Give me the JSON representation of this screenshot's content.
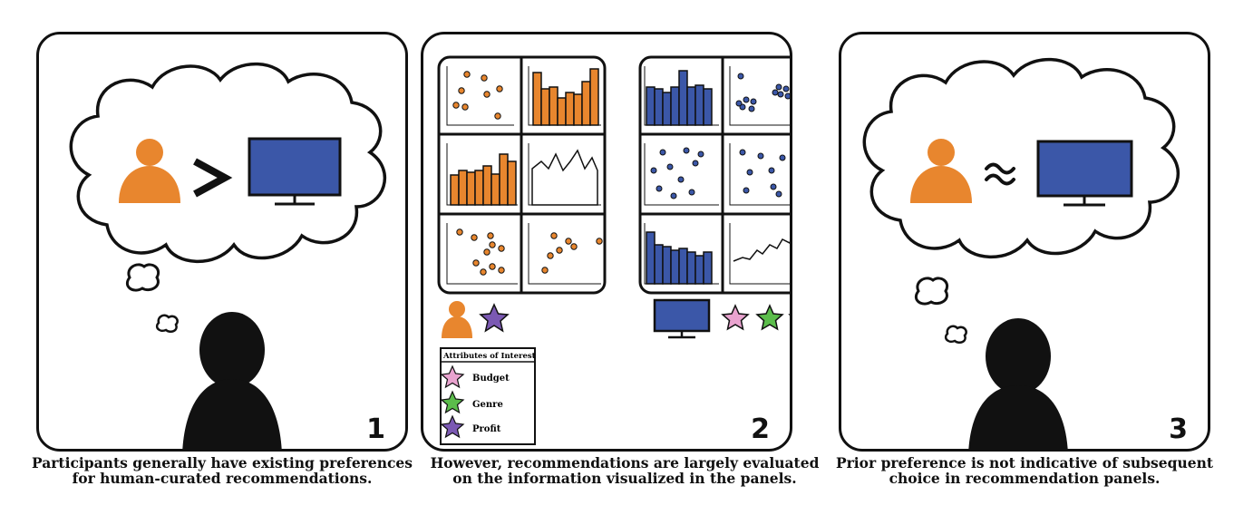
{
  "panels": [
    {
      "number": "1",
      "caption": "Participants generally have existing preferences for human-curated recommendations.",
      "comparison": ">"
    },
    {
      "number": "2",
      "caption": "However, recommendations are largely evaluated on the information visualized in the panels."
    },
    {
      "number": "3",
      "caption": "Prior preference is not indicative of subsequent choice in recommendation panels.",
      "comparison": "≈"
    }
  ],
  "legend": {
    "title": "Attributes of Interest",
    "items": [
      {
        "label": "Budget",
        "color": "#e9a3cf"
      },
      {
        "label": "Genre",
        "color": "#5bbd4b"
      },
      {
        "label": "Profit",
        "color": "#7b59b3"
      }
    ]
  },
  "colors": {
    "human": "#e8862e",
    "system": "#3b57a8",
    "outline": "#111111"
  },
  "icons": [
    "person-icon",
    "monitor-icon",
    "star-icon",
    "thought-bubble-icon",
    "silhouette-icon"
  ]
}
